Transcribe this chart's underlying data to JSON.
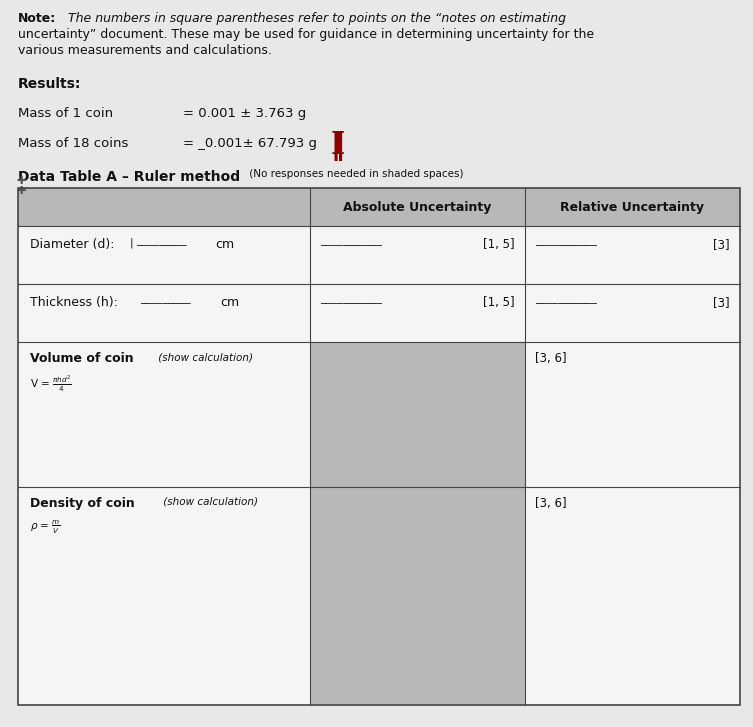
{
  "bg_color": "#c8c8c8",
  "page_color": "#e8e8e8",
  "text_color": "#111111",
  "cursor_color": "#8b0000",
  "border_color": "#444444",
  "shaded_color": "#b8b8b8",
  "white_color": "#f5f5f5",
  "note_line1_bold": "Note:",
  "note_line1_rest": "  The numbers in square parentheses refer to points on the “notes on estimating",
  "note_line2": "uncertainty” document. These may be used for guidance in determining uncertainty for the",
  "note_line3": "various measurements and calculations.",
  "results_label": "Results:",
  "mass1_label": "Mass of 1 coin",
  "mass1_value": "= 0.001 ± 3.763 g",
  "mass18_label": "Mass of 18 coins",
  "mass18_value": "= _0.001± 67.793 g",
  "table_title_bold": "Data Table A – Ruler method",
  "table_subtitle": " (No responses needed in shaded spaces)",
  "col_abs": "Absolute Uncertainty",
  "col_rel": "Relative Uncertainty",
  "d_label": "Diameter (d):",
  "d_unit": "cm",
  "d_abs_ref": "[1, 5]",
  "d_rel_ref": "[3]",
  "h_label": "Thickness (h):",
  "h_unit": "cm",
  "h_abs_ref": "[1, 5]",
  "h_rel_ref": "[3]",
  "vol_label": "Volume of coin",
  "vol_italic": " (show calculation)",
  "vol_ref": "[3, 6]",
  "den_label": "Density of coin",
  "den_italic": " (show calculation)",
  "den_ref": "[3, 6]"
}
